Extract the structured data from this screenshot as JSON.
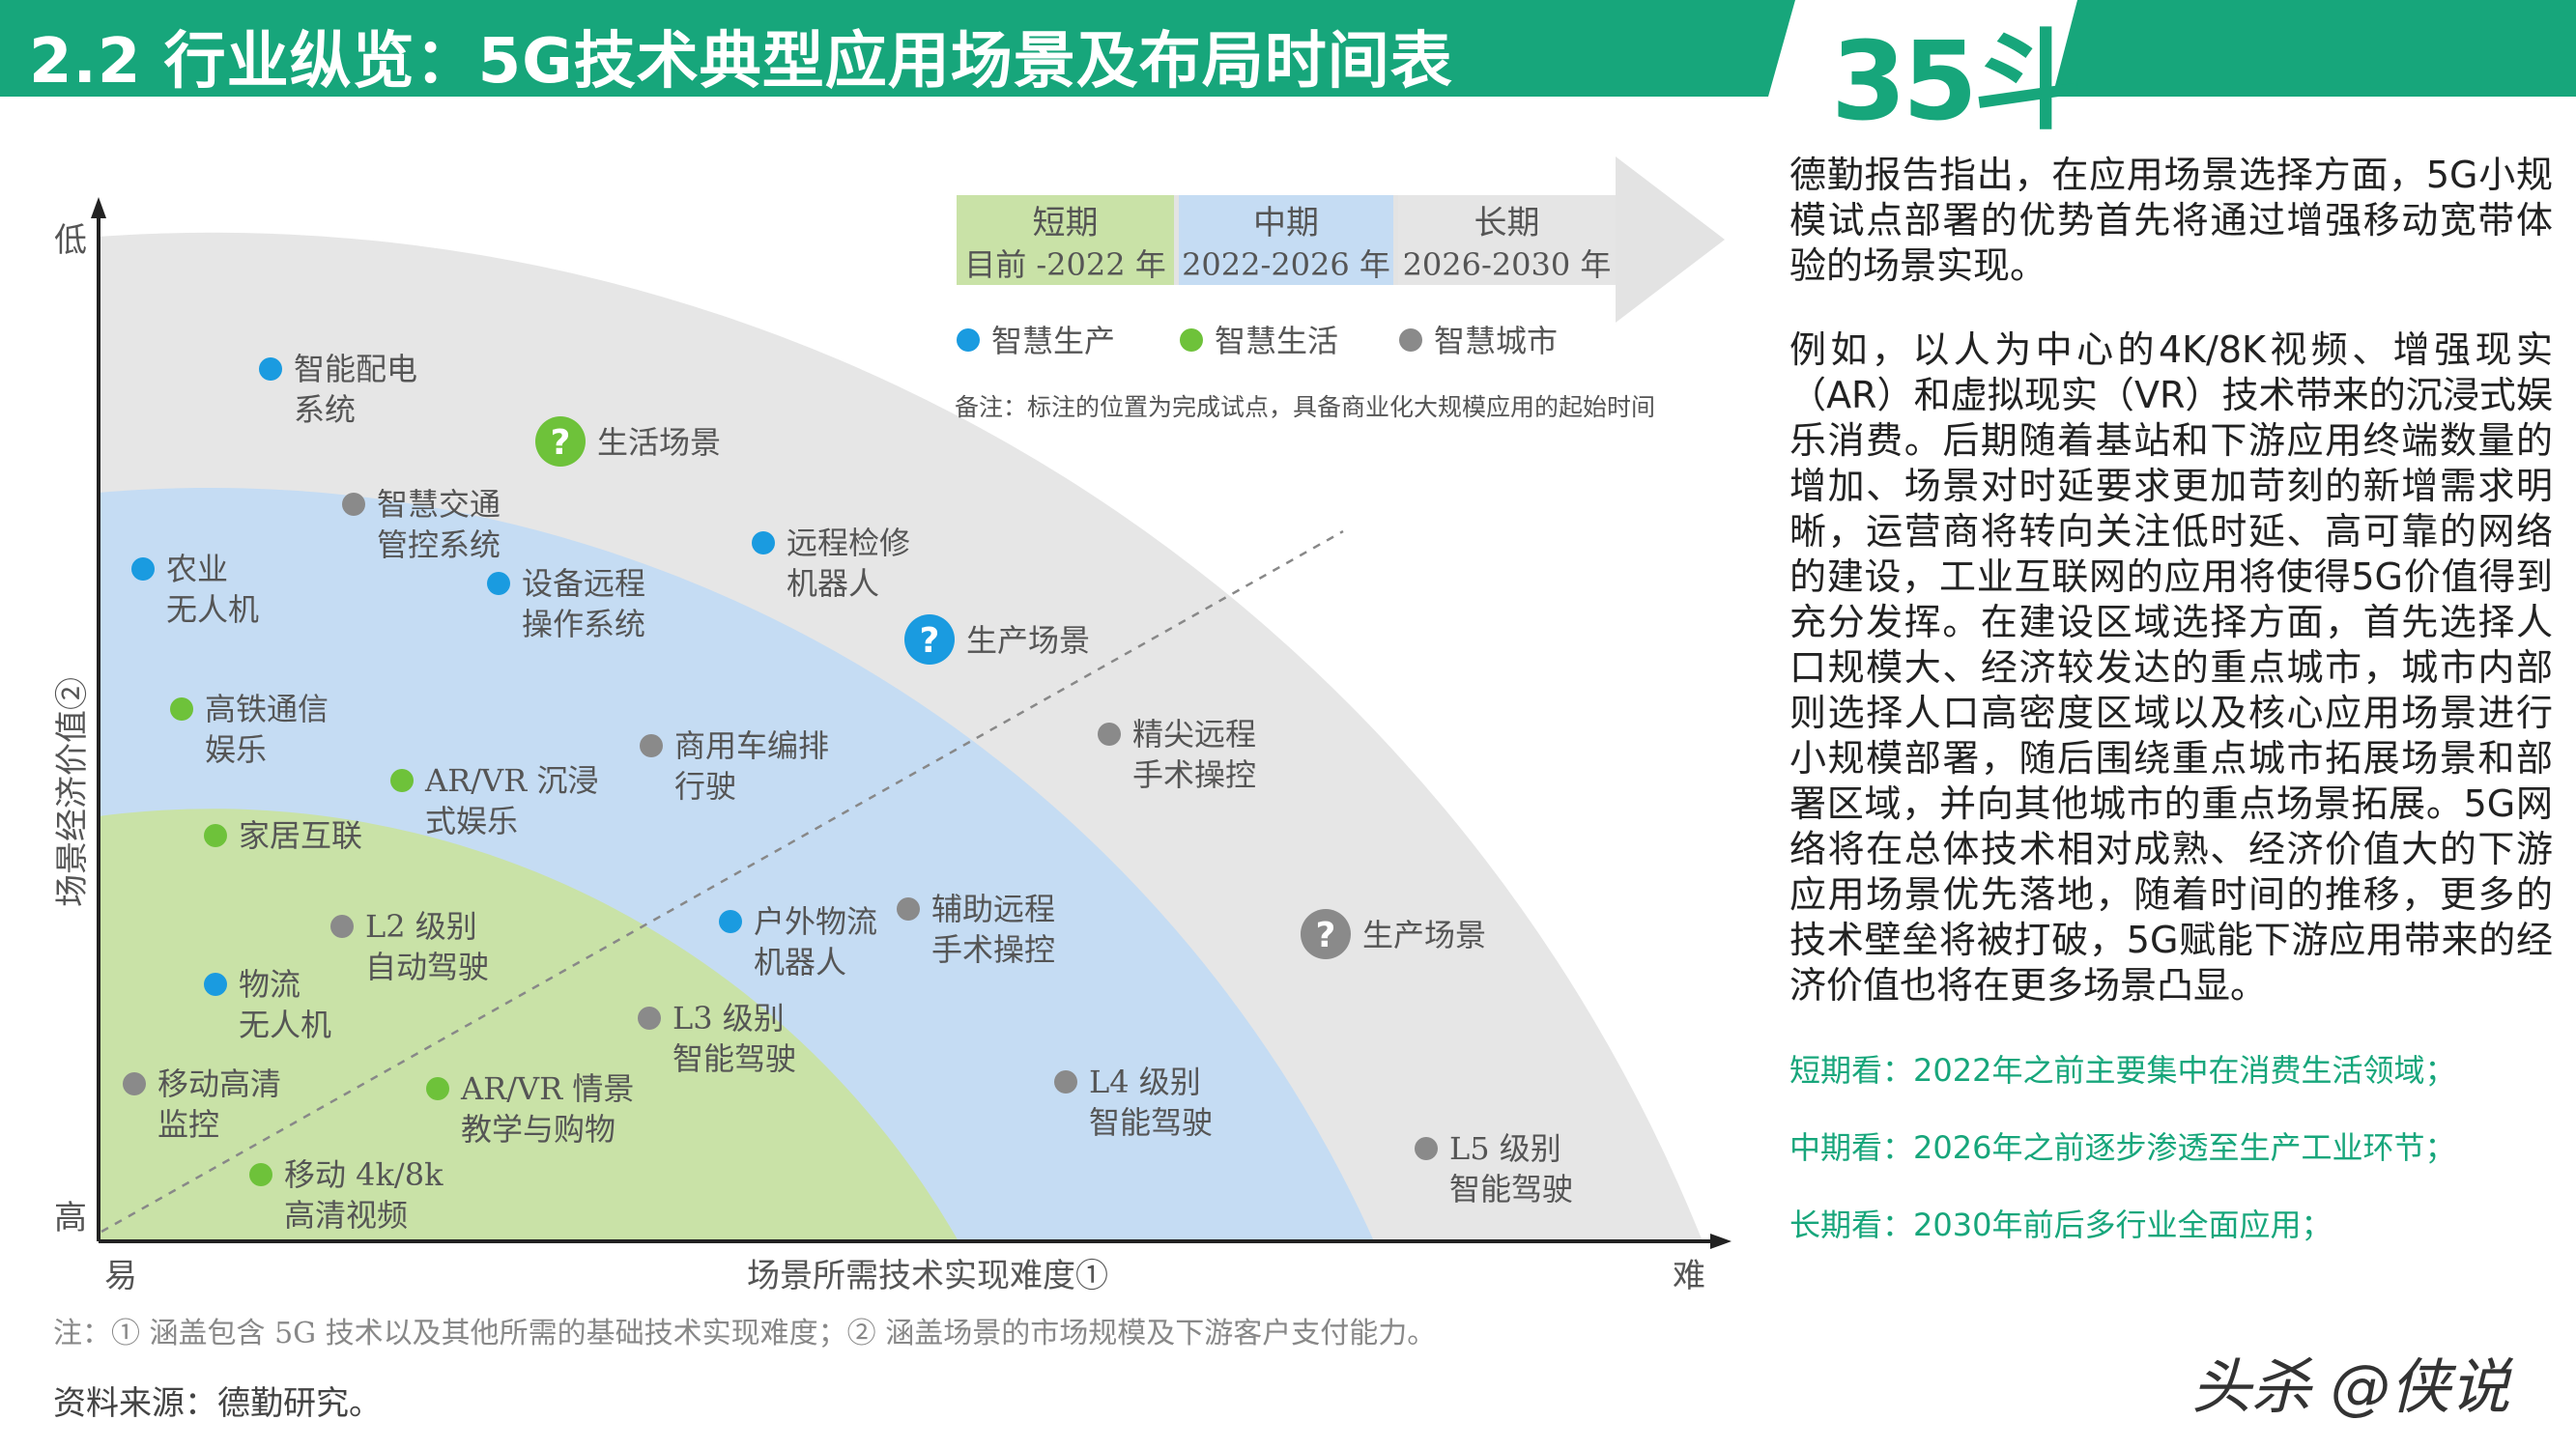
{
  "header": {
    "title": "2.2 行业纵览：5G技术典型应用场景及布局时间表",
    "logo": "35斗",
    "colors": {
      "green": "#17a67b"
    }
  },
  "diagram": {
    "y_axis": {
      "label": "场景经济价值②",
      "top_label": "低",
      "bottom_label": "高"
    },
    "x_axis": {
      "label": "场景所需技术实现难度①",
      "left_label": "易",
      "right_label": "难"
    },
    "periods": [
      {
        "name": "短期",
        "range": "目前 -2022 年",
        "color": "#c9e2a7"
      },
      {
        "name": "中期",
        "range": "2022-2026 年",
        "color": "#c5dcf3"
      },
      {
        "name": "长期",
        "range": "2026-2030 年",
        "color": "#e5e5e5"
      }
    ],
    "legend": [
      {
        "label": "智慧生产",
        "color": "#1a9be0"
      },
      {
        "label": "智慧生活",
        "color": "#6ec23a"
      },
      {
        "label": "智慧城市",
        "color": "#8a8a8a"
      }
    ],
    "note": "备注：标注的位置为完成试点，具备商业化大规模应用的起始时间",
    "zone_markers": [
      {
        "symbol": "?",
        "label": "生活场景",
        "category": "智慧生活"
      },
      {
        "symbol": "?",
        "label": "生产场景",
        "category": "智慧生产"
      },
      {
        "symbol": "?",
        "label": "生产场景",
        "category": "智慧城市"
      }
    ],
    "items": [
      {
        "lines": [
          "智能配电",
          "系统"
        ],
        "category": "智慧生产"
      },
      {
        "lines": [
          "智慧交通",
          "管控系统"
        ],
        "category": "智慧城市"
      },
      {
        "lines": [
          "农业",
          "无人机"
        ],
        "category": "智慧生产"
      },
      {
        "lines": [
          "设备远程",
          "操作系统"
        ],
        "category": "智慧生产"
      },
      {
        "lines": [
          "远程检修",
          "机器人"
        ],
        "category": "智慧生产"
      },
      {
        "lines": [
          "高铁通信",
          "娱乐"
        ],
        "category": "智慧生活"
      },
      {
        "lines": [
          "商用车编排",
          "行驶"
        ],
        "category": "智慧城市"
      },
      {
        "lines": [
          "精尖远程",
          "手术操控"
        ],
        "category": "智慧城市"
      },
      {
        "lines": [
          "AR/VR 沉浸",
          "式娱乐"
        ],
        "category": "智慧生活"
      },
      {
        "lines": [
          "家居互联"
        ],
        "category": "智慧生活"
      },
      {
        "lines": [
          "L2 级别",
          "自动驾驶"
        ],
        "category": "智慧城市"
      },
      {
        "lines": [
          "户外物流",
          "机器人"
        ],
        "category": "智慧生产"
      },
      {
        "lines": [
          "辅助远程",
          "手术操控"
        ],
        "category": "智慧城市"
      },
      {
        "lines": [
          "物流",
          "无人机"
        ],
        "category": "智慧生产"
      },
      {
        "lines": [
          "L3 级别",
          "智能驾驶"
        ],
        "category": "智慧城市"
      },
      {
        "lines": [
          "移动高清",
          "监控"
        ],
        "category": "智慧城市"
      },
      {
        "lines": [
          "AR/VR 情景",
          "教学与购物"
        ],
        "category": "智慧生活"
      },
      {
        "lines": [
          "L4 级别",
          "智能驾驶"
        ],
        "category": "智慧城市"
      },
      {
        "lines": [
          "移动 4k/8k",
          "高清视频"
        ],
        "category": "智慧生活"
      },
      {
        "lines": [
          "L5 级别",
          "智能驾驶"
        ],
        "category": "智慧城市"
      }
    ]
  },
  "right_panel": {
    "paragraphs": [
      "德勤报告指出，在应用场景选择方面，5G小规模试点部署的优势首先将通过增强移动宽带体验的场景实现。",
      "例如，以人为中心的4K/8K视频、增强现实（AR）和虚拟现实（VR）技术带来的沉浸式娱乐消费。后期随着基站和下游应用终端数量的增加、场景对时延要求更加苛刻的新增需求明晰，运营商将转向关注低时延、高可靠的网络的建设，工业互联网的应用将使得5G价值得到充分发挥。在建设区域选择方面，首先选择人口规模大、经济较发达的重点城市，城市内部则选择人口高密度区域以及核心应用场景进行小规模部署，随后围绕重点城市拓展场景和部署区域，并向其他城市的重点场景拓展。5G网络将在总体技术相对成熟、经济价值大的下游应用场景优先落地，随着时间的推移，更多的技术壁垒将被打破，5G赋能下游应用带来的经济价值也将在更多场景凸显。"
    ],
    "period_notes": [
      "短期看：2022年之前主要集中在消费生活领域；",
      "中期看：2026年之前逐步渗透至生产工业环节；",
      "长期看：2030年前后多行业全面应用；"
    ]
  },
  "footnote": "注：① 涵盖包含 5G 技术以及其他所需的基础技术实现难度；② 涵盖场景的市场规模及下游客户支付能力。",
  "source": "资料来源：德勤研究。",
  "watermark": "头杀 @侠说"
}
